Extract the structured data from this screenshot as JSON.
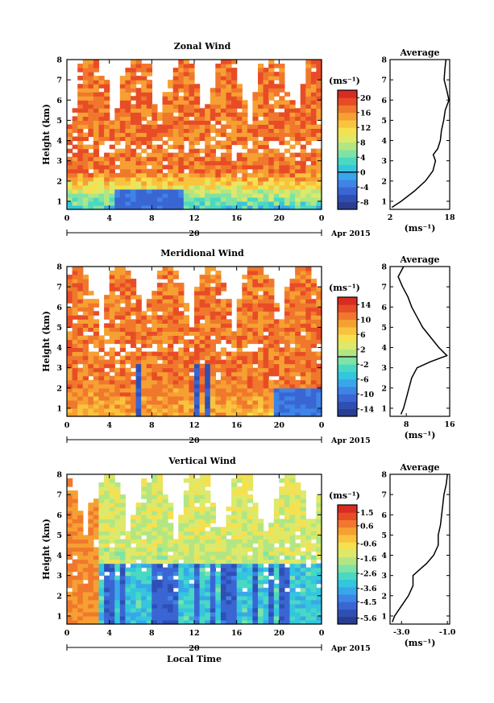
{
  "chart_data": [
    {
      "type": "heatmap",
      "title": "Zonal Wind",
      "ylabel": "Height (km)",
      "xlabel": "",
      "x_ticks": [
        "0",
        "4",
        "8",
        "12",
        "16",
        "20",
        "0"
      ],
      "y_ticks": [
        "1",
        "2",
        "3",
        "4",
        "5",
        "6",
        "7",
        "8"
      ],
      "xlim": [
        0,
        24
      ],
      "ylim": [
        0.6,
        8
      ],
      "date_label": "20",
      "date_suffix": "Apr 2015",
      "unit": "(ms⁻¹)",
      "colorbar": {
        "ticks": [
          "20",
          "16",
          "12",
          "8",
          "4",
          "0",
          "-4",
          "-8"
        ],
        "range": [
          -10,
          22
        ],
        "zero_line": 0
      },
      "field": {
        "base": 2,
        "top": 17,
        "variability": 6,
        "low_layer": 1.8,
        "gap_rows": [
          3.4,
          4.0
        ]
      },
      "average_profile": {
        "title": "Average",
        "xlabel": "(ms⁻¹)",
        "x_ticks": [
          "2",
          "18"
        ],
        "xlim": [
          2,
          18
        ],
        "height": [
          0.7,
          1.0,
          1.5,
          2.0,
          2.5,
          3.0,
          3.3,
          3.6,
          4.0,
          4.5,
          5.0,
          5.5,
          6.0,
          6.5,
          7.0,
          7.5,
          8.0
        ],
        "value": [
          2.5,
          5.0,
          8.5,
          11.5,
          13.5,
          14.2,
          13.6,
          14.8,
          15.5,
          15.8,
          16.4,
          16.8,
          17.8,
          17.2,
          16.5,
          16.7,
          17.0
        ]
      }
    },
    {
      "type": "heatmap",
      "title": "Meridional Wind",
      "ylabel": "Height (km)",
      "xlabel": "",
      "x_ticks": [
        "0",
        "4",
        "8",
        "12",
        "16",
        "20",
        "0"
      ],
      "y_ticks": [
        "1",
        "2",
        "3",
        "4",
        "5",
        "6",
        "7",
        "8"
      ],
      "xlim": [
        0,
        24
      ],
      "ylim": [
        0.6,
        8
      ],
      "date_label": "20",
      "date_suffix": "Apr 2015",
      "unit": "(ms⁻¹)",
      "colorbar": {
        "ticks": [
          "14",
          "10",
          "6",
          "2",
          "-2",
          "-6",
          "-10",
          "-14"
        ],
        "range": [
          -16,
          16
        ],
        "zero_line": 0
      },
      "field": {
        "base": 8,
        "top": 11,
        "variability": 5,
        "low_layer": 1.6,
        "gap_rows": [
          3.6,
          4.2
        ]
      },
      "average_profile": {
        "title": "Average",
        "xlabel": "(ms⁻¹)",
        "x_ticks": [
          "8",
          "16"
        ],
        "xlim": [
          5,
          16
        ],
        "height": [
          0.7,
          1.0,
          1.5,
          2.0,
          2.5,
          3.0,
          3.3,
          3.6,
          4.0,
          4.5,
          5.0,
          5.5,
          6.0,
          6.5,
          7.0,
          7.5,
          8.0
        ],
        "value": [
          7.0,
          7.5,
          8.0,
          8.5,
          9.0,
          10.0,
          12.5,
          15.5,
          14.0,
          12.5,
          11.0,
          10.0,
          9.0,
          8.3,
          7.3,
          6.5,
          7.5
        ]
      }
    },
    {
      "type": "heatmap",
      "title": "Vertical Wind",
      "ylabel": "Height (km)",
      "xlabel": "Local Time",
      "x_ticks": [
        "0",
        "4",
        "8",
        "12",
        "16",
        "20",
        "0"
      ],
      "y_ticks": [
        "1",
        "2",
        "3",
        "4",
        "5",
        "6",
        "7",
        "8"
      ],
      "xlim": [
        0,
        24
      ],
      "ylim": [
        0.6,
        8
      ],
      "date_label": "20",
      "date_suffix": "Apr 2015",
      "unit": "(ms⁻¹)",
      "colorbar": {
        "ticks": [
          "1.5",
          "0.6",
          "-0.6",
          "-1.6",
          "-2.6",
          "-3.6",
          "-4.5",
          "-5.6"
        ],
        "range": [
          -6,
          2
        ],
        "zero_line": null
      },
      "field": {
        "base": -1.5,
        "top": -1.0,
        "variability": 0.6,
        "low_layer": 3.5,
        "gap_rows": []
      },
      "average_profile": {
        "title": "Average",
        "xlabel": "(ms⁻¹)",
        "x_ticks": [
          "-3.0",
          "-1.0"
        ],
        "xlim": [
          -3.5,
          -0.9
        ],
        "height": [
          0.7,
          1.0,
          1.5,
          2.0,
          2.5,
          3.0,
          3.3,
          3.6,
          4.0,
          4.5,
          5.0,
          5.5,
          6.0,
          6.5,
          7.0,
          7.5,
          8.0
        ],
        "value": [
          -3.4,
          -3.3,
          -3.0,
          -2.7,
          -2.5,
          -2.5,
          -2.2,
          -1.9,
          -1.6,
          -1.4,
          -1.4,
          -1.3,
          -1.25,
          -1.2,
          -1.15,
          -1.05,
          -1.0
        ]
      }
    }
  ]
}
